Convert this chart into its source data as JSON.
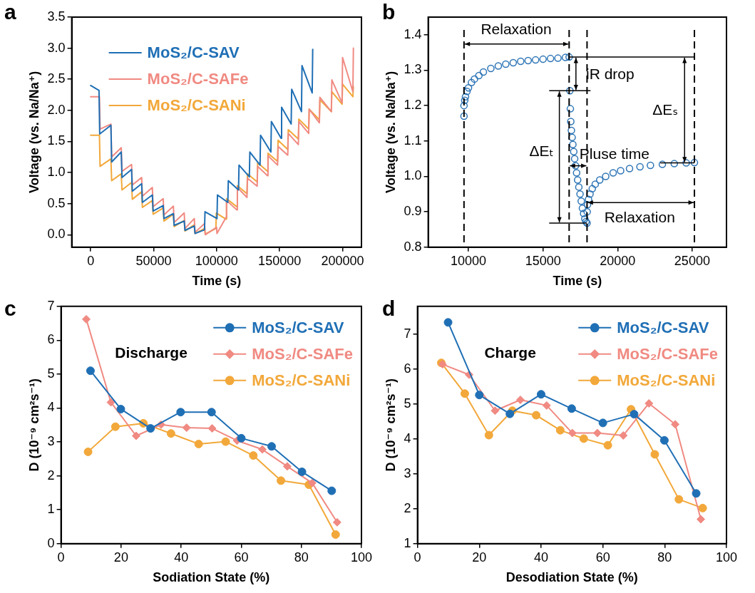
{
  "chart_data": [
    {
      "type": "line",
      "title": "a",
      "xlabel": "Time (s)",
      "ylabel": "Voltage (vs. Na/Na⁺)",
      "xlim": [
        -15000,
        215000
      ],
      "xticks": [
        0,
        50000,
        100000,
        150000,
        200000
      ],
      "ylim": [
        -0.2,
        3.5
      ],
      "yticks": [
        {
          "value": 0,
          "label": "0.0"
        },
        0.5,
        {
          "value": 1,
          "label": "1.0"
        },
        1.5,
        {
          "value": 2,
          "label": "2.0"
        },
        2.5,
        {
          "value": 3,
          "label": "3.0"
        },
        3.5
      ],
      "legend": "top left",
      "marker": "none",
      "series": [
        {
          "name": "MoS₂/C-SAV",
          "color": "#1f6fb5",
          "x": [
            0,
            6650,
            7200,
            16100,
            16700,
            24300,
            24900,
            32500,
            33100,
            40500,
            41100,
            49000,
            49600,
            57600,
            58200,
            65700,
            66300,
            74300,
            74900,
            82300,
            82900,
            90400,
            90800,
            100300,
            100700,
            108900,
            109300,
            117400,
            117800,
            126000,
            126400,
            134500,
            134900,
            143100,
            143500,
            151200,
            151600,
            159200,
            159600,
            167400,
            167800,
            175900,
            176300
          ],
          "values": [
            2.4,
            2.32,
            1.62,
            1.76,
            1.17,
            1.33,
            0.92,
            1.05,
            0.7,
            0.82,
            0.52,
            0.64,
            0.38,
            0.47,
            0.26,
            0.34,
            0.15,
            0.22,
            0.07,
            0.14,
            0.02,
            0.08,
            0.37,
            0.26,
            0.64,
            0.52,
            0.87,
            0.72,
            1.12,
            0.93,
            1.33,
            1.12,
            1.6,
            1.33,
            1.82,
            1.55,
            2.05,
            1.78,
            2.34,
            1.98,
            2.72,
            2.28,
            2.98
          ]
        },
        {
          "name": "MoS₂/C-SAFe",
          "color": "#f08a82",
          "x": [
            0,
            7000,
            7500,
            16100,
            16700,
            24300,
            24900,
            32500,
            33100,
            40500,
            41100,
            49000,
            49600,
            57600,
            58200,
            65700,
            66300,
            74300,
            74900,
            82300,
            82900,
            90400,
            91000,
            100000,
            100300,
            107500,
            107900,
            116100,
            116500,
            124100,
            124500,
            132200,
            132600,
            140400,
            140800,
            148400,
            148800,
            156500,
            156900,
            164900,
            165300,
            173100,
            173500,
            181600,
            182000,
            191100,
            191500,
            199600,
            200000,
            208200,
            208600
          ],
          "values": [
            2.22,
            2.22,
            1.7,
            1.78,
            1.25,
            1.4,
            1.02,
            1.13,
            0.8,
            0.92,
            0.62,
            0.76,
            0.45,
            0.58,
            0.32,
            0.46,
            0.2,
            0.35,
            0.1,
            0.26,
            0.04,
            0.18,
            0.0,
            0.12,
            0.02,
            0.28,
            0.55,
            0.4,
            0.76,
            0.6,
            0.91,
            0.78,
            1.1,
            0.95,
            1.27,
            1.12,
            1.42,
            1.28,
            1.63,
            1.45,
            1.82,
            1.63,
            2.02,
            1.8,
            2.21,
            1.98,
            2.49,
            2.12,
            2.85,
            2.3,
            3.0
          ]
        },
        {
          "name": "MoS₂/C-SANi",
          "color": "#f2a83a",
          "x": [
            0,
            7000,
            7500,
            16100,
            16700,
            24300,
            24900,
            32500,
            33100,
            40500,
            41100,
            49000,
            49600,
            57600,
            58200,
            65700,
            66300,
            74300,
            74900,
            82300,
            82900,
            90400,
            91000,
            99400,
            99800,
            107500,
            107900,
            116100,
            116500,
            124100,
            124500,
            132200,
            132600,
            140400,
            140800,
            148400,
            148800,
            156500,
            156900,
            164900,
            165300,
            173100,
            173500,
            181600,
            182000,
            191100,
            191500,
            199600,
            200000,
            208200,
            208600
          ],
          "values": [
            1.6,
            1.6,
            1.1,
            1.22,
            0.87,
            0.98,
            0.72,
            0.84,
            0.57,
            0.69,
            0.44,
            0.55,
            0.33,
            0.43,
            0.22,
            0.33,
            0.13,
            0.23,
            0.06,
            0.16,
            0.02,
            0.1,
            0.01,
            0.1,
            0.35,
            0.25,
            0.58,
            0.45,
            0.79,
            0.66,
            0.98,
            0.85,
            1.16,
            1.02,
            1.31,
            1.18,
            1.52,
            1.37,
            1.69,
            1.54,
            1.86,
            1.7,
            2.02,
            1.85,
            2.17,
            1.98,
            2.3,
            2.1,
            2.42,
            2.22,
            2.38
          ]
        }
      ]
    },
    {
      "type": "scatter",
      "title": "b",
      "xlabel": "Time (s)",
      "ylabel": "Voltage (vs. Na/Na⁺)",
      "xlim": [
        7300,
        27300
      ],
      "xticks": [
        10000,
        15000,
        20000,
        25000
      ],
      "ylim": [
        0.8,
        1.45
      ],
      "yticks": [
        0.8,
        0.9,
        {
          "value": 1,
          "label": "1.0"
        },
        1.1,
        1.2,
        1.3,
        1.4
      ],
      "marker": "circle",
      "series": [
        {
          "color": "#2e75b6",
          "x": [
            9700,
            9700,
            9750,
            9800,
            9900,
            10000,
            10200,
            10400,
            10700,
            11000,
            11500,
            12000,
            12500,
            13000,
            13500,
            14000,
            14500,
            15000,
            15500,
            16000,
            16500,
            16750,
            16800,
            16830,
            16860,
            16900,
            16950,
            17000,
            17060,
            17120,
            17180,
            17250,
            17320,
            17400,
            17480,
            17560,
            17640,
            17720,
            17800,
            17880,
            17950,
            17960,
            17980,
            18050,
            18150,
            18300,
            18500,
            18800,
            19200,
            19700,
            20200,
            20800,
            21500,
            22200,
            23000,
            23800,
            24600,
            25150
          ],
          "values": [
            1.17,
            1.2,
            1.215,
            1.225,
            1.24,
            1.25,
            1.265,
            1.275,
            1.285,
            1.295,
            1.305,
            1.312,
            1.317,
            1.321,
            1.325,
            1.327,
            1.329,
            1.331,
            1.333,
            1.334,
            1.336,
            1.337,
            1.242,
            1.191,
            1.155,
            1.13,
            1.11,
            1.09,
            1.07,
            1.05,
            1.03,
            1.01,
            0.99,
            0.97,
            0.95,
            0.93,
            0.91,
            0.895,
            0.88,
            0.872,
            0.868,
            0.9,
            0.92,
            0.935,
            0.95,
            0.965,
            0.978,
            0.99,
            1.0,
            1.01,
            1.016,
            1.022,
            1.027,
            1.031,
            1.034,
            1.036,
            1.038,
            1.039
          ]
        }
      ],
      "ref_lines": [
        {
          "axis": "x",
          "value": 9700,
          "color": "#000000",
          "line_style": "dashed"
        },
        {
          "axis": "x",
          "value": 16750,
          "color": "#000000",
          "line_style": "dashed"
        },
        {
          "axis": "x",
          "value": 17950,
          "color": "#000000",
          "line_style": "dashed"
        },
        {
          "axis": "x",
          "value": 25150,
          "color": "#000000",
          "line_style": "dashed"
        },
        {
          "axis": "y",
          "value": 1.337,
          "color": "#000000",
          "line_style": "solid"
        },
        {
          "axis": "y",
          "value": 1.242,
          "color": "#000000",
          "line_style": "solid"
        },
        {
          "axis": "y",
          "value": 0.868,
          "color": "#000000",
          "line_style": "solid"
        },
        {
          "axis": "y",
          "value": 1.038,
          "color": "#000000",
          "line_style": "solid"
        }
      ],
      "annotations": [
        "Relaxation",
        "iR drop",
        "ΔEₜ",
        {
          "text": "Pluse time",
          "x": 17350,
          "y": 1.03
        },
        "ΔEₛ",
        "Relaxation"
      ]
    },
    {
      "type": "line",
      "title": "c",
      "xlabel": "Sodiation State (%)",
      "ylabel": "D (10⁻⁹ cm²s⁻¹)",
      "xlim": [
        0,
        100
      ],
      "xticks": [
        0,
        20,
        40,
        60,
        80,
        100
      ],
      "ylim": [
        0,
        7
      ],
      "yticks": [
        0,
        1,
        2,
        3,
        4,
        5,
        6,
        7
      ],
      "legend": "top right",
      "annotations": [
        "Discharge"
      ],
      "series": [
        {
          "name": "MoS₂/C-SAV",
          "color": "#1f6fb5",
          "marker": "circle",
          "x": [
            9.8,
            19.9,
            29.8,
            39.8,
            50.1,
            60.0,
            70.1,
            80.2,
            90.1
          ],
          "values": [
            5.1,
            3.97,
            3.4,
            3.88,
            3.88,
            3.11,
            2.87,
            2.12,
            1.56
          ]
        },
        {
          "name": "MoS₂/C-SAFe",
          "color": "#f08a82",
          "marker": "diamond",
          "x": [
            8.4,
            16.6,
            25.0,
            33.3,
            41.8,
            50.3,
            58.6,
            67.0,
            75.3,
            83.6,
            91.9
          ],
          "values": [
            6.62,
            4.17,
            3.18,
            3.51,
            3.42,
            3.4,
            3.04,
            2.78,
            2.28,
            1.79,
            0.63
          ]
        },
        {
          "name": "MoS₂/C-SANi",
          "color": "#f2a83a",
          "marker": "circle",
          "x": [
            9.0,
            18.1,
            27.4,
            36.6,
            45.8,
            54.8,
            64.0,
            73.2,
            82.5,
            91.4
          ],
          "values": [
            2.71,
            3.45,
            3.55,
            3.25,
            2.94,
            3.01,
            2.6,
            1.86,
            1.74,
            0.27
          ]
        }
      ]
    },
    {
      "type": "line",
      "title": "d",
      "xlabel": "Desodiation State (%)",
      "ylabel": "D (10⁻⁹ cm²s⁻¹)",
      "xlim": [
        0,
        100
      ],
      "xticks": [
        0,
        20,
        40,
        60,
        80,
        100
      ],
      "ylim": [
        1,
        7.8
      ],
      "yticks": [
        1,
        2,
        3,
        4,
        5,
        6,
        7
      ],
      "legend": "top right",
      "annotations": [
        "Charge"
      ],
      "series": [
        {
          "name": "MoS₂/C-SAV",
          "color": "#1f6fb5",
          "marker": "circle",
          "x": [
            9.9,
            20.0,
            29.9,
            40.0,
            49.9,
            60.0,
            70.1,
            79.9,
            90.2
          ],
          "values": [
            7.34,
            5.26,
            4.72,
            5.28,
            4.87,
            4.46,
            4.71,
            3.96,
            2.44
          ]
        },
        {
          "name": "MoS₂/C-SAFe",
          "color": "#f08a82",
          "marker": "diamond",
          "x": [
            8.1,
            16.7,
            25.1,
            33.3,
            41.8,
            50.1,
            58.2,
            66.6,
            74.9,
            83.4,
            91.7
          ],
          "values": [
            6.14,
            5.84,
            4.81,
            5.12,
            4.96,
            4.17,
            4.17,
            4.1,
            5.02,
            4.42,
            1.7
          ]
        },
        {
          "name": "MoS₂/C-SANi",
          "color": "#f2a83a",
          "marker": "circle",
          "x": [
            7.7,
            15.3,
            23.1,
            30.7,
            38.4,
            46.2,
            53.8,
            61.6,
            69.1,
            76.8,
            84.6,
            92.3
          ],
          "values": [
            6.18,
            5.3,
            4.11,
            4.81,
            4.68,
            4.25,
            4.01,
            3.82,
            4.85,
            3.56,
            2.27,
            2.02
          ]
        }
      ]
    }
  ]
}
